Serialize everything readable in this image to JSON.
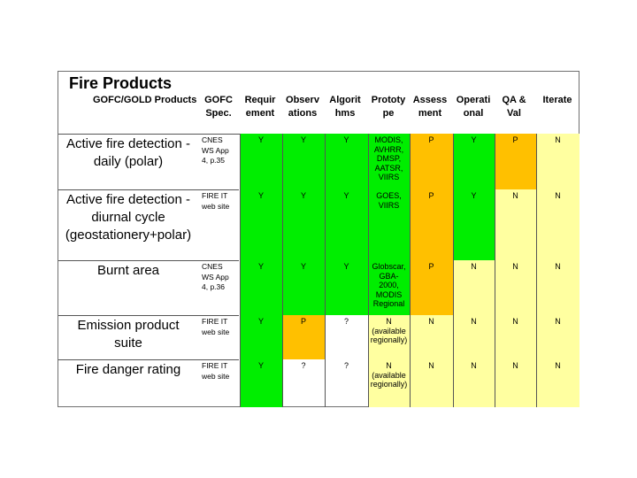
{
  "title": "Fire Products",
  "headers": [
    {
      "line1": "GOFC/GOLD Products",
      "line2": ""
    },
    {
      "line1": "GOFC",
      "line2": "Spec."
    },
    {
      "line1": "Requir",
      "line2": "ement"
    },
    {
      "line1": "Observ",
      "line2": "ations"
    },
    {
      "line1": "Algorit",
      "line2": "hms"
    },
    {
      "line1": "Prototy",
      "line2": "pe"
    },
    {
      "line1": "Assess",
      "line2": "ment"
    },
    {
      "line1": "Operati",
      "line2": "onal"
    },
    {
      "line1": "QA &",
      "line2": "Val"
    },
    {
      "line1": "Iterate",
      "line2": ""
    }
  ],
  "rows": [
    {
      "name": [
        "Active fire detection -",
        "daily (polar)"
      ],
      "spec": [
        "CNES",
        "WS App",
        "4, p.35"
      ],
      "req": "Y",
      "obs": "Y",
      "alg": "Y",
      "proto": [
        "MODIS,",
        "AVHRR,",
        "DMSP,",
        "AATSR,",
        "VIIRS"
      ],
      "assess": "P",
      "oper": "Y",
      "qa": "P",
      "iter": "N"
    },
    {
      "name": [
        "Active fire detection -",
        "diurnal cycle",
        "(geostationery+polar)"
      ],
      "spec": [
        "FIRE IT",
        "web site"
      ],
      "req": "Y",
      "obs": "Y",
      "alg": "Y",
      "proto": [
        "GOES,",
        "VIIRS"
      ],
      "assess": "P",
      "oper": "Y",
      "qa": "N",
      "iter": "N"
    },
    {
      "name": [
        "Burnt area"
      ],
      "spec": [
        "CNES",
        "WS App",
        "4, p.36"
      ],
      "req": "Y",
      "obs": "Y",
      "alg": "Y",
      "proto": [
        "Globscar,",
        "GBA-",
        "2000,",
        "MODIS",
        "Regional"
      ],
      "assess": "P",
      "oper": "N",
      "qa": "N",
      "iter": "N"
    },
    {
      "name": [
        "Emission product",
        "suite"
      ],
      "spec": [
        "FIRE IT",
        "web site"
      ],
      "req": "Y",
      "obs": "P",
      "alg": "?",
      "proto": [
        "N",
        "(available",
        "regionally)"
      ],
      "assess": "N",
      "oper": "N",
      "qa": "N",
      "iter": "N"
    },
    {
      "name": [
        "Fire danger rating"
      ],
      "spec": [
        "FIRE IT",
        "web site"
      ],
      "req": "Y",
      "obs": "?",
      "alg": "?",
      "proto": [
        "N",
        "(available",
        "regionally)"
      ],
      "assess": "N",
      "oper": "N",
      "qa": "N",
      "iter": "N"
    }
  ],
  "colors": {
    "green": "#00ee00",
    "orange": "#ffc000",
    "yellow": "#ffffa0",
    "white": "#ffffff",
    "grid": "#555555"
  }
}
